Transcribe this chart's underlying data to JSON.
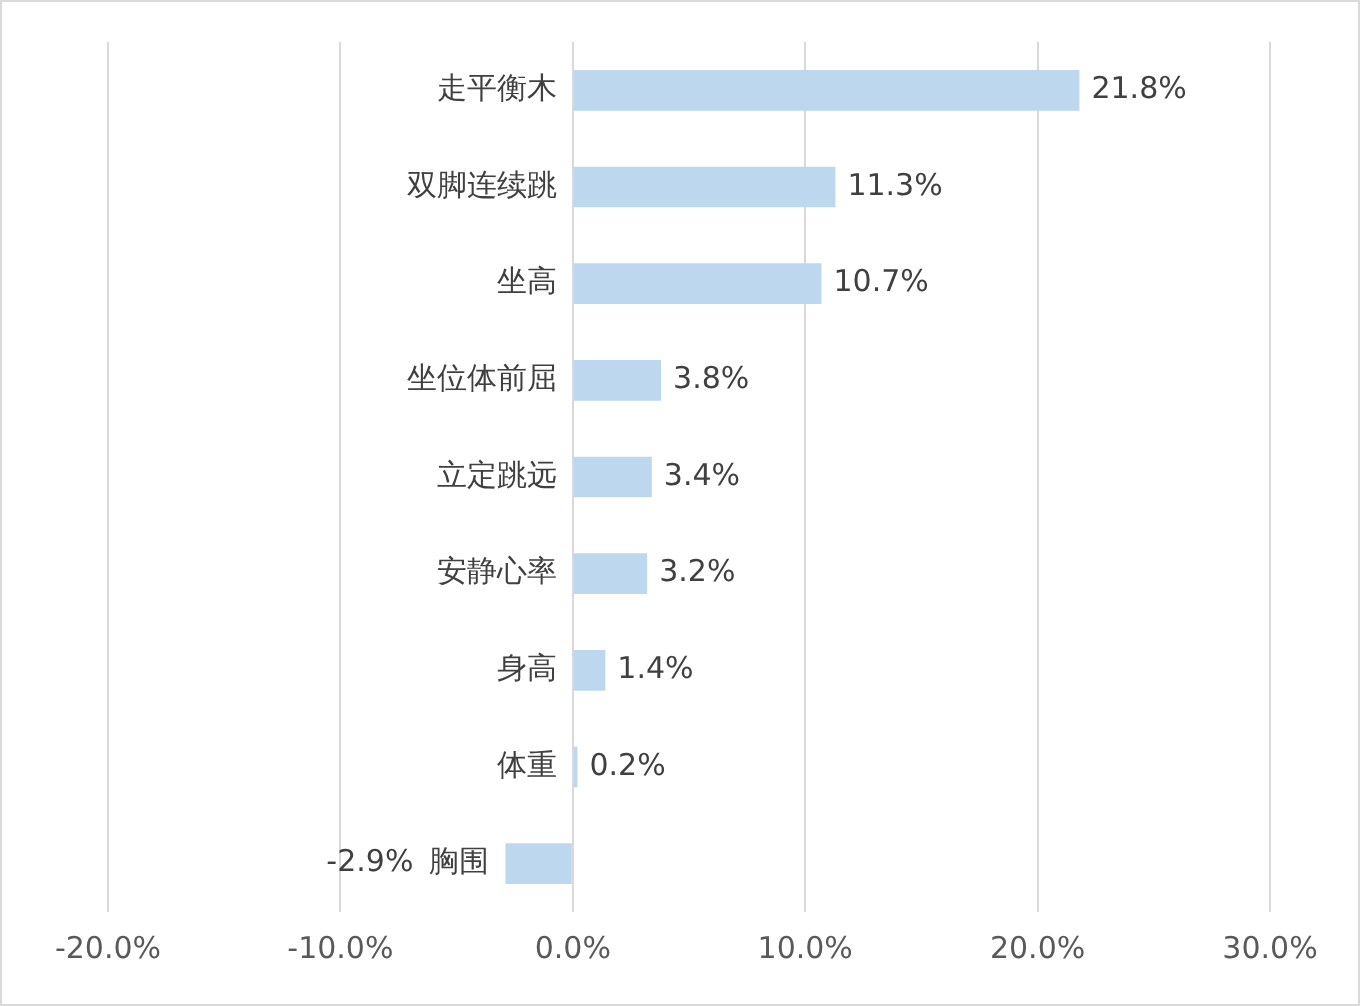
{
  "chart_data": {
    "type": "bar",
    "orientation": "horizontal",
    "categories": [
      "走平衡木",
      "双脚连续跳",
      "坐高",
      "坐位体前屈",
      "立定跳远",
      "安静心率",
      "身高",
      "体重",
      "胸围"
    ],
    "values": [
      21.8,
      11.3,
      10.7,
      3.8,
      3.4,
      3.2,
      1.4,
      0.2,
      -2.9
    ],
    "value_labels": [
      "21.8%",
      "11.3%",
      "10.7%",
      "3.8%",
      "3.4%",
      "3.2%",
      "1.4%",
      "0.2%",
      "-2.9%"
    ],
    "color": "#bdd7ee",
    "xlim": [
      -20,
      30
    ],
    "xticks": [
      {
        "value": -20,
        "label": "-20.0%"
      },
      {
        "value": -10,
        "label": "-10.0%"
      },
      {
        "value": 0,
        "label": "0.0%"
      },
      {
        "value": 10,
        "label": "10.0%"
      },
      {
        "value": 20,
        "label": "20.0%"
      },
      {
        "value": 30,
        "label": "30.0%"
      }
    ],
    "grid": "x",
    "legend": false
  }
}
